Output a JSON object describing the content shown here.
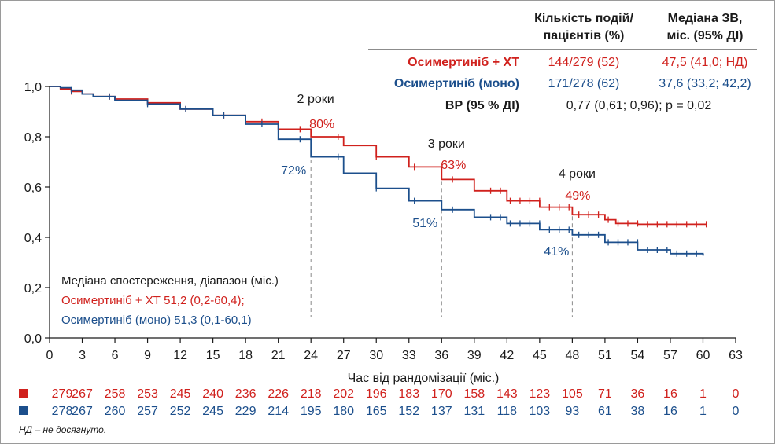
{
  "colors": {
    "arm1": "#d0211d",
    "arm2": "#1c4f8c",
    "text": "#1a1a1a",
    "guide": "#8a8a8a"
  },
  "table": {
    "col_events_header": [
      "Кількість подій/",
      "пацієнтів (%)"
    ],
    "col_median_header": [
      "Медіана ЗВ,",
      "міс. (95% ДІ)"
    ],
    "rows": [
      {
        "name": "Осимертиніб + ХТ",
        "events": "144/279 (52)",
        "median": "47,5 (41,0; НД)"
      },
      {
        "name": "Осимертиніб (моно)",
        "events": "171/278 (62)",
        "median": "37,6 (33,2; 42,2)"
      }
    ],
    "hr_label": "ВР (95 % ДІ)",
    "hr_value": "0,77 (0,61; 0,96); р = 0,02"
  },
  "median_followup": {
    "title": "Медіана спостереження, діапазон (міс.)",
    "arm1": "Осимертиніб + ХТ 51,2 (0,2-60,4);",
    "arm2": "Осимертиніб (моно) 51,3 (0,1-60,1)"
  },
  "chart_data": {
    "type": "line",
    "subtype": "kaplan-meier",
    "xlabel": "Час від рандомізації (міс.)",
    "ylabel": "",
    "xlim": [
      0,
      63
    ],
    "ylim": [
      0,
      1
    ],
    "x_ticks": [
      0,
      3,
      6,
      9,
      12,
      15,
      18,
      21,
      24,
      27,
      30,
      33,
      36,
      39,
      42,
      45,
      48,
      51,
      54,
      57,
      60,
      63
    ],
    "y_ticks": [
      0,
      0.2,
      0.4,
      0.6,
      0.8,
      1.0
    ],
    "y_tick_labels": [
      "0,0",
      "0,2",
      "0,4",
      "0,6",
      "0,8",
      "1,0"
    ],
    "series": [
      {
        "name": "Осимертиніб + ХТ",
        "color": "#d0211d",
        "x": [
          0,
          1,
          2,
          3,
          4,
          6,
          9,
          12,
          15,
          18,
          21,
          24,
          27,
          30,
          33,
          36,
          39,
          42,
          45,
          48,
          51,
          52,
          54,
          57,
          60,
          60.4
        ],
        "y": [
          1.0,
          0.99,
          0.98,
          0.97,
          0.96,
          0.95,
          0.935,
          0.91,
          0.885,
          0.86,
          0.83,
          0.8,
          0.765,
          0.72,
          0.68,
          0.63,
          0.585,
          0.545,
          0.52,
          0.49,
          0.47,
          0.455,
          0.452,
          0.452,
          0.452,
          0.452
        ]
      },
      {
        "name": "Осимертиніб (моно)",
        "color": "#1c4f8c",
        "x": [
          0,
          1,
          2,
          3,
          4,
          6,
          9,
          12,
          15,
          18,
          21,
          24,
          27,
          30,
          33,
          36,
          39,
          42,
          45,
          48,
          51,
          54,
          57,
          60,
          60.1
        ],
        "y": [
          1.0,
          0.995,
          0.985,
          0.97,
          0.96,
          0.945,
          0.93,
          0.91,
          0.885,
          0.85,
          0.79,
          0.72,
          0.655,
          0.595,
          0.545,
          0.51,
          0.48,
          0.455,
          0.43,
          0.41,
          0.38,
          0.35,
          0.335,
          0.33,
          0.33
        ]
      }
    ],
    "annotations": [
      {
        "label": "2 роки",
        "x": 24,
        "arm1_value": "80%",
        "arm2_value": "72%",
        "arm1_y": 0.8,
        "arm2_y": 0.72
      },
      {
        "label": "3 роки",
        "x": 36,
        "arm1_value": "63%",
        "arm2_value": "51%",
        "arm1_y": 0.63,
        "arm2_y": 0.51
      },
      {
        "label": "4 роки",
        "x": 48,
        "arm1_value": "49%",
        "arm2_value": "41%",
        "arm1_y": 0.49,
        "arm2_y": 0.41
      }
    ],
    "risk_table": {
      "times": [
        0,
        3,
        6,
        9,
        12,
        15,
        18,
        21,
        24,
        27,
        30,
        33,
        36,
        39,
        42,
        45,
        48,
        51,
        54,
        57,
        60,
        63
      ],
      "arm1": [
        279,
        267,
        258,
        253,
        245,
        240,
        236,
        226,
        218,
        202,
        196,
        183,
        170,
        158,
        143,
        123,
        105,
        71,
        36,
        16,
        1,
        0
      ],
      "arm2": [
        278,
        267,
        260,
        257,
        252,
        245,
        229,
        214,
        195,
        180,
        165,
        152,
        137,
        131,
        118,
        103,
        93,
        61,
        38,
        16,
        1,
        0
      ]
    }
  },
  "footnote": "НД – не досягнуто."
}
